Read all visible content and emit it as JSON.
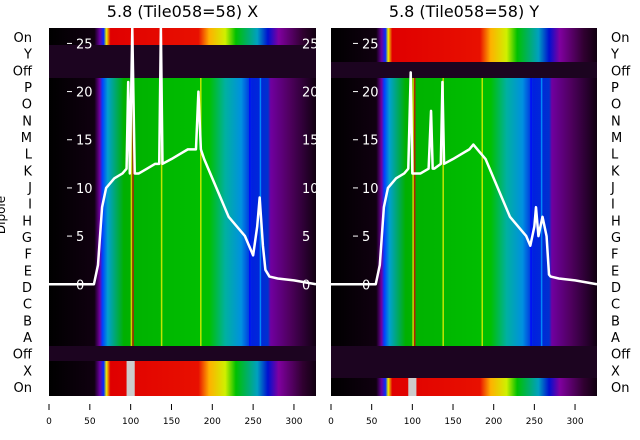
{
  "chart_data": [
    {
      "type": "heatmap",
      "title": "5.8 (Tile058=58) X",
      "ylabel": "Dipole",
      "xlim": [
        0,
        327
      ],
      "ylim": [
        -11.6,
        26.6
      ],
      "xticks": [
        "0",
        "50",
        "100",
        "150",
        "200",
        "250",
        "300"
      ],
      "yticks": [
        "0",
        "5",
        "10",
        "15",
        "20",
        "25"
      ],
      "row_labels": [
        "On",
        "Y",
        "Off",
        "P",
        "O",
        "N",
        "M",
        "L",
        "K",
        "J",
        "I",
        "H",
        "G",
        "F",
        "E",
        "D",
        "C",
        "B",
        "A",
        "Off",
        "X",
        "On"
      ],
      "line": {
        "x": [
          0,
          55,
          60,
          65,
          70,
          80,
          90,
          95,
          97,
          99,
          102,
          105,
          110,
          120,
          130,
          135,
          137,
          139,
          150,
          160,
          170,
          175,
          180,
          183,
          186,
          190,
          200,
          210,
          220,
          230,
          240,
          245,
          250,
          255,
          258,
          262,
          265,
          270,
          280,
          300,
          327
        ],
        "y": [
          0,
          0,
          2,
          8,
          10,
          11,
          11.5,
          12,
          21,
          11.5,
          26.6,
          11.5,
          11.5,
          12,
          12.5,
          12.5,
          26.6,
          12.5,
          13,
          13.5,
          14,
          14,
          14,
          20,
          14,
          13,
          11,
          9,
          7,
          6,
          5,
          4,
          3,
          6,
          9,
          4,
          1.5,
          0.8,
          0.6,
          0.4,
          0
        ]
      }
    },
    {
      "type": "heatmap",
      "title": "5.8 (Tile058=58) Y",
      "xlim": [
        0,
        327
      ],
      "ylim": [
        -11.6,
        26.6
      ],
      "xticks": [
        "0",
        "50",
        "100",
        "150",
        "200",
        "250",
        "300"
      ],
      "yticks": [
        "0",
        "5",
        "10",
        "15",
        "20",
        "25"
      ],
      "row_labels": [
        "On",
        "Y",
        "Off",
        "P",
        "O",
        "N",
        "M",
        "L",
        "K",
        "J",
        "I",
        "H",
        "G",
        "F",
        "E",
        "D",
        "C",
        "B",
        "A",
        "Off",
        "X",
        "On"
      ],
      "line": {
        "x": [
          0,
          55,
          60,
          65,
          70,
          80,
          90,
          95,
          98,
          100,
          103,
          110,
          120,
          123,
          125,
          127,
          135,
          137,
          139,
          150,
          160,
          170,
          175,
          180,
          190,
          200,
          210,
          220,
          230,
          240,
          245,
          250,
          252,
          255,
          260,
          265,
          268,
          270,
          280,
          300,
          327
        ],
        "y": [
          0,
          0,
          2,
          8,
          10,
          11,
          11.5,
          12,
          22,
          11.5,
          11.5,
          11.5,
          12,
          18,
          12,
          12,
          12.5,
          21,
          12.5,
          13,
          13.5,
          14,
          14.5,
          14,
          13,
          11,
          9,
          7,
          6,
          5,
          4,
          6,
          8,
          5,
          7,
          5,
          1,
          0.8,
          0.6,
          0.4,
          0
        ]
      }
    }
  ]
}
